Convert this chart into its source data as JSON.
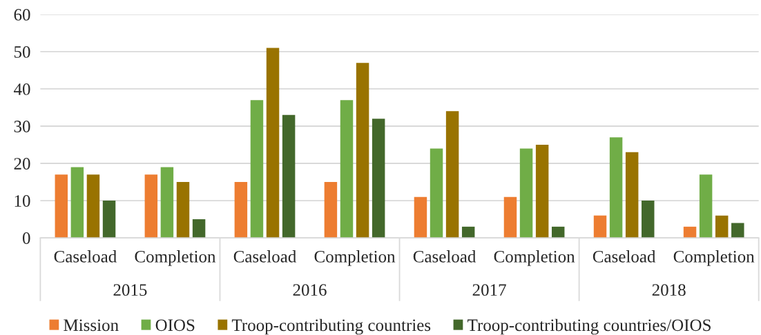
{
  "chart_data": {
    "type": "bar",
    "categories": [
      "Caseload",
      "Completion",
      "Caseload",
      "Completion",
      "Caseload",
      "Completion",
      "Caseload",
      "Completion"
    ],
    "annotations": [
      "2015",
      "2016",
      "2017",
      "2018"
    ],
    "series": [
      {
        "name": "Mission",
        "color": "#ed7d31",
        "values": [
          17,
          17,
          15,
          15,
          11,
          11,
          6,
          3
        ]
      },
      {
        "name": "OIOS",
        "color": "#70ad47",
        "values": [
          19,
          19,
          37,
          37,
          24,
          24,
          27,
          17
        ]
      },
      {
        "name": "Troop-contributing countries",
        "color": "#997300",
        "values": [
          17,
          15,
          51,
          47,
          34,
          25,
          23,
          6
        ]
      },
      {
        "name": "Troop-contributing countries/OIOS",
        "color": "#43682b",
        "values": [
          10,
          5,
          33,
          32,
          3,
          3,
          10,
          4
        ]
      }
    ],
    "ylim": [
      0,
      60
    ],
    "yticks": [
      0,
      10,
      20,
      30,
      40,
      50,
      60
    ],
    "grid": "y",
    "legend": "bottom"
  }
}
